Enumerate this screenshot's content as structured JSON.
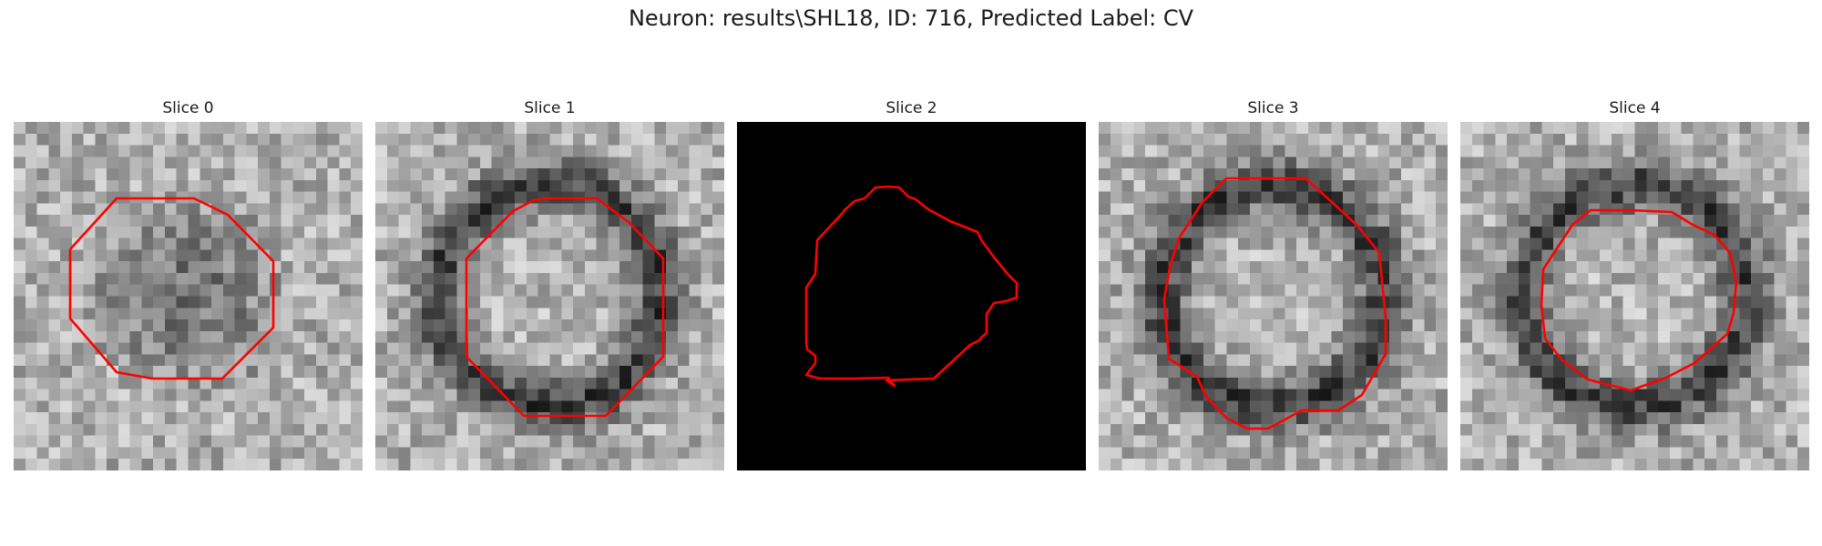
{
  "figure": {
    "title": "Neuron: results\\SHL18, ID: 716, Predicted Label: CV",
    "contour_color": "#ff0000"
  },
  "slices": [
    {
      "label": "Slice 0",
      "kind": "blob-dark",
      "seed": 11,
      "contour_shape": "octagon-1"
    },
    {
      "label": "Slice 1",
      "kind": "ring-dark",
      "seed": 23,
      "contour_shape": "octagon-2"
    },
    {
      "label": "Slice 2",
      "kind": "black",
      "seed": 0,
      "contour_shape": "freeform"
    },
    {
      "label": "Slice 3",
      "kind": "ring-dark",
      "seed": 37,
      "contour_shape": "octagon-3"
    },
    {
      "label": "Slice 4",
      "kind": "ring-dark",
      "seed": 41,
      "contour_shape": "octagon-4"
    }
  ]
}
